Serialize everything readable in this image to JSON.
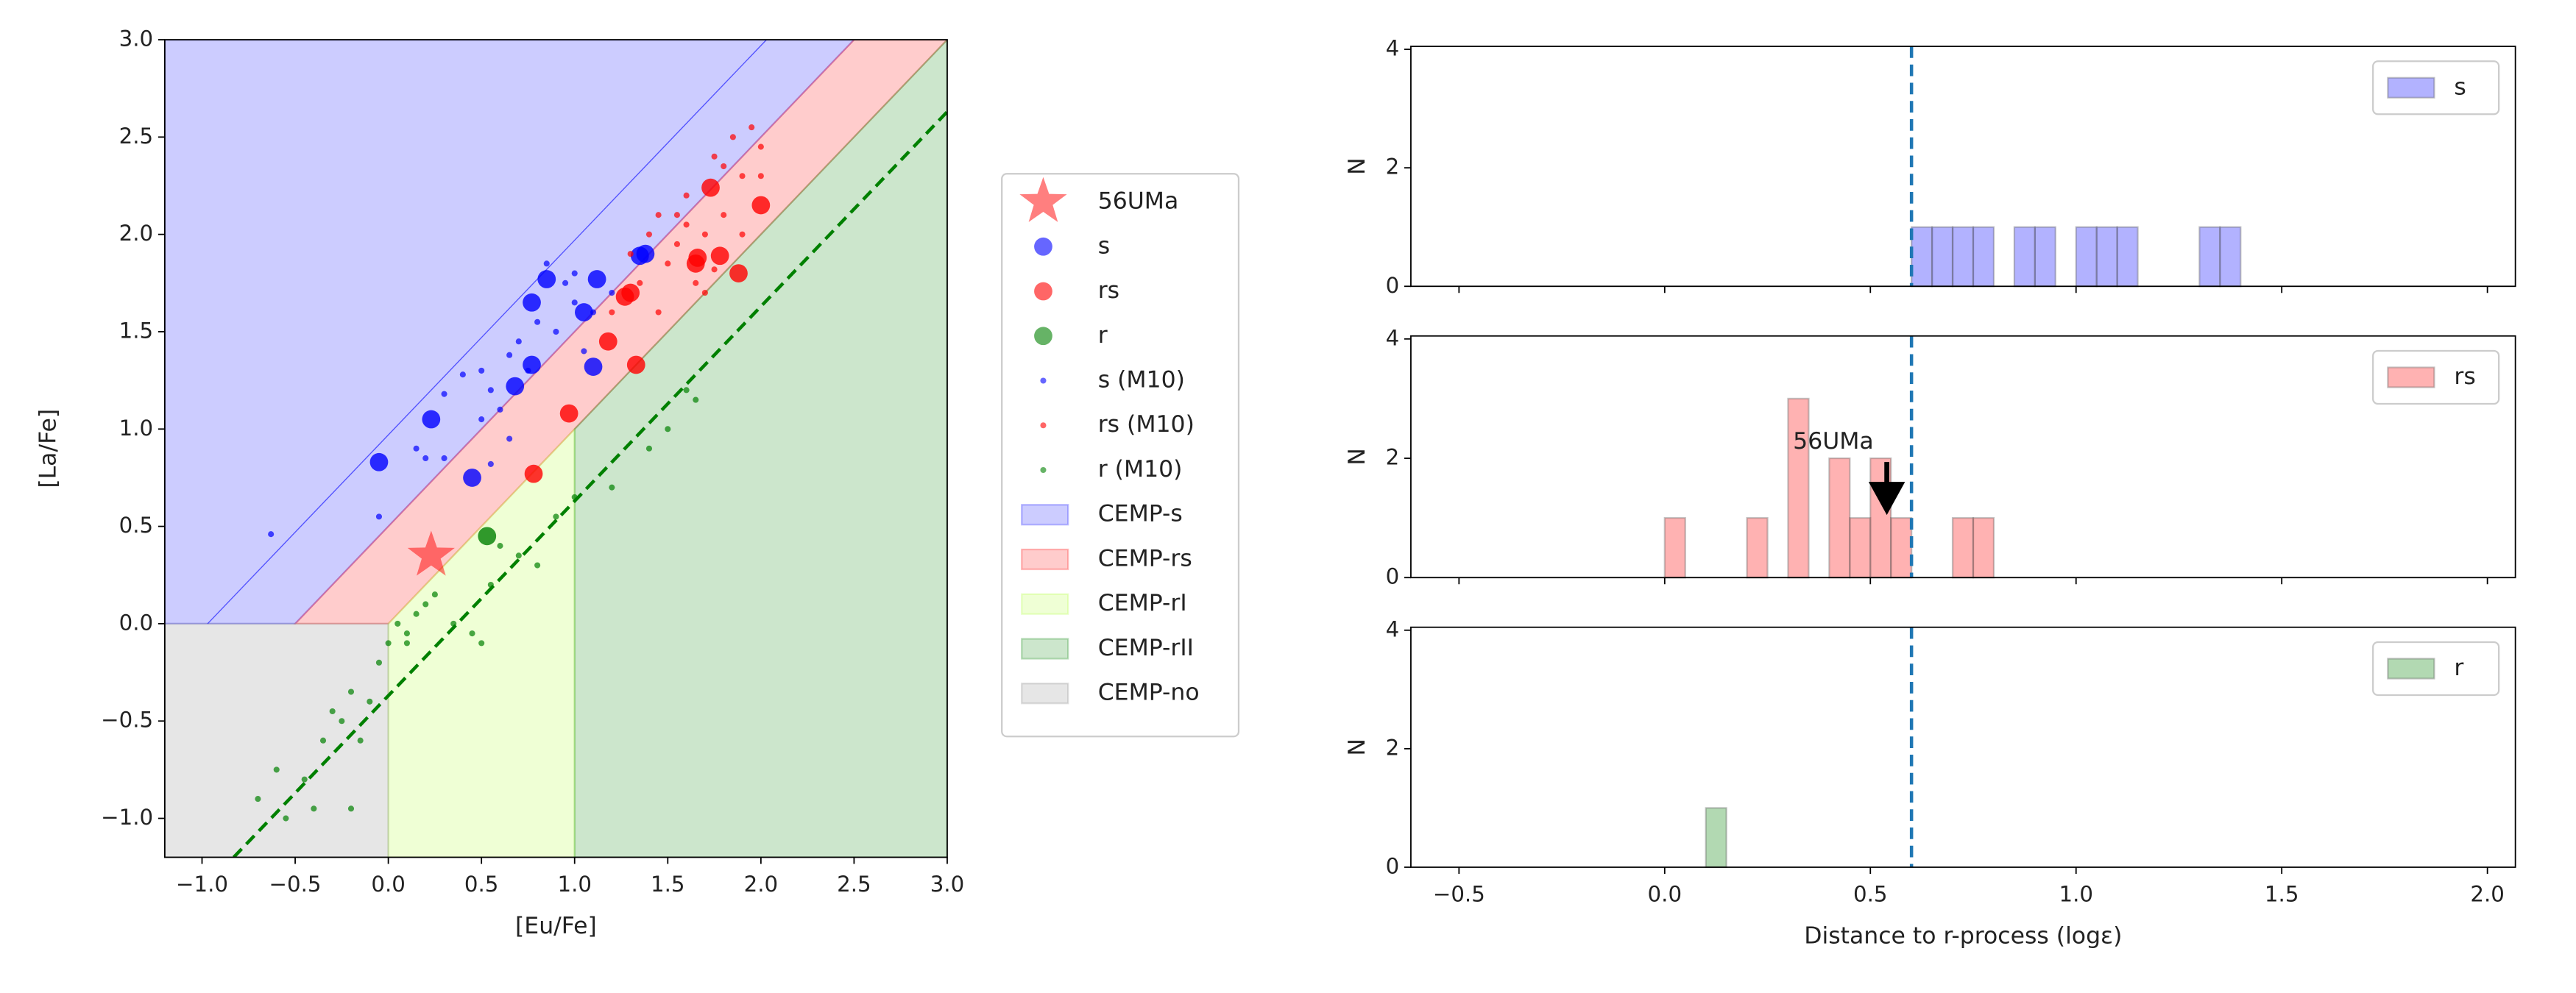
{
  "chart_data": [
    {
      "type": "scatter",
      "xlabel": "[Eu/Fe]",
      "ylabel": "[La/Fe]",
      "xlim": [
        -1.2,
        3
      ],
      "ylim": [
        -1.2,
        3
      ],
      "xticks": [
        {
          "value": -1,
          "label": "−1.0"
        },
        {
          "value": -0.5,
          "label": "−0.5"
        },
        {
          "value": 0,
          "label": "0.0"
        },
        0.5,
        {
          "value": 1,
          "label": "1.0"
        },
        1.5,
        {
          "value": 2,
          "label": "2.0"
        },
        2.5,
        {
          "value": 3,
          "label": "3.0"
        }
      ],
      "yticks": [
        {
          "value": -1,
          "label": "−1.0"
        },
        {
          "value": -0.5,
          "label": "−0.5"
        },
        {
          "value": 0,
          "label": "0.0"
        },
        0.5,
        {
          "value": 1,
          "label": "1.0"
        },
        1.5,
        {
          "value": 2,
          "label": "2.0"
        },
        2.5,
        {
          "value": 3,
          "label": "3.0"
        }
      ],
      "legend": "outside right",
      "regions": [
        {
          "name": "CEMP-s",
          "color": "#0000ff",
          "x": [
            -1.2,
            -0.5,
            2.5,
            -1.2
          ],
          "values": [
            0,
            0,
            3,
            3
          ]
        },
        {
          "name": "CEMP-rs",
          "color": "#ff0000",
          "x": [
            -0.5,
            0,
            3,
            2.5
          ],
          "values": [
            0,
            0,
            3,
            3
          ]
        },
        {
          "name": "CEMP-rI",
          "color": "#adff2f",
          "x": [
            0,
            1,
            1,
            0
          ],
          "values": [
            -1.2,
            -1.2,
            1,
            0
          ]
        },
        {
          "name": "CEMP-rII",
          "color": "#008000",
          "x": [
            1,
            3,
            3,
            1
          ],
          "values": [
            -1.2,
            -1.2,
            3,
            1
          ]
        },
        {
          "name": "CEMP-no",
          "color": "#808080",
          "x": [
            -1.2,
            0,
            0,
            -1.2
          ],
          "values": [
            -1.2,
            -1.2,
            0,
            0
          ]
        }
      ],
      "lines": [
        {
          "color": "#0000ff",
          "style": "solid",
          "x": [
            -0.97,
            2.03
          ],
          "values": [
            0,
            3
          ]
        },
        {
          "color": "#008000",
          "style": "dashed",
          "x": [
            -0.83,
            3
          ],
          "values": [
            -1.2,
            2.63
          ]
        }
      ],
      "series": [
        {
          "name": "56UMa",
          "color": "#ff0000",
          "marker": "star",
          "x": [
            0.23
          ],
          "values": [
            0.35
          ]
        },
        {
          "name": "s",
          "color": "#0000ff",
          "marker": "circle",
          "x": [
            -0.05,
            0.23,
            0.45,
            0.68,
            0.77,
            0.77,
            0.85,
            1.05,
            1.12,
            1.35,
            1.38,
            1.1
          ],
          "values": [
            0.83,
            1.05,
            0.75,
            1.22,
            1.33,
            1.65,
            1.77,
            1.6,
            1.77,
            1.89,
            1.9,
            1.32
          ]
        },
        {
          "name": "rs",
          "color": "#ff0000",
          "marker": "circle",
          "x": [
            0.78,
            0.97,
            1.18,
            1.3,
            1.33,
            1.65,
            1.73,
            1.78,
            1.88,
            2.0,
            1.66,
            1.27
          ],
          "values": [
            0.77,
            1.08,
            1.45,
            1.7,
            1.33,
            1.85,
            2.24,
            1.89,
            1.8,
            2.15,
            1.88,
            1.68
          ]
        },
        {
          "name": "r",
          "color": "#008000",
          "marker": "circle",
          "x": [
            0.53
          ],
          "values": [
            0.45
          ]
        },
        {
          "name": "s (M10)",
          "color": "#0000ff",
          "marker": "dot",
          "x": [
            -0.63,
            -0.05,
            0.15,
            0.2,
            0.3,
            0.3,
            0.4,
            0.5,
            0.55,
            0.5,
            0.6,
            0.65,
            0.7,
            0.75,
            0.8,
            0.85,
            0.9,
            0.95,
            1.0,
            1.05,
            1.1,
            1.2,
            1.0,
            0.55,
            0.65
          ],
          "values": [
            0.46,
            0.55,
            0.9,
            0.85,
            0.85,
            1.18,
            1.28,
            1.3,
            0.82,
            1.05,
            1.1,
            0.95,
            1.45,
            1.3,
            1.55,
            1.85,
            1.5,
            1.75,
            1.65,
            1.4,
            1.6,
            1.7,
            1.8,
            1.2,
            1.38
          ]
        },
        {
          "name": "rs (M10)",
          "color": "#ff0000",
          "marker": "dot",
          "x": [
            1.3,
            1.4,
            1.45,
            1.5,
            1.55,
            1.6,
            1.65,
            1.7,
            1.75,
            1.8,
            1.85,
            1.9,
            1.95,
            2.0,
            1.7,
            1.6,
            1.45,
            1.35,
            1.8,
            1.9,
            1.75,
            2.0,
            1.55,
            1.2
          ],
          "values": [
            1.9,
            2.0,
            2.1,
            1.85,
            1.95,
            2.2,
            1.75,
            2.0,
            2.4,
            2.35,
            2.5,
            2.3,
            2.55,
            2.45,
            1.7,
            2.05,
            1.6,
            1.75,
            2.1,
            2.0,
            1.82,
            2.3,
            2.1,
            1.6
          ]
        },
        {
          "name": "r (M10)",
          "color": "#008000",
          "marker": "dot",
          "x": [
            -0.7,
            -0.6,
            -0.55,
            -0.45,
            -0.4,
            -0.35,
            -0.3,
            -0.25,
            -0.2,
            -0.15,
            -0.1,
            -0.05,
            0.0,
            0.05,
            0.1,
            0.2,
            0.25,
            0.35,
            0.45,
            0.5,
            0.55,
            0.6,
            0.7,
            0.8,
            0.9,
            1.0,
            1.2,
            1.4,
            1.5,
            1.6,
            1.65,
            0.1,
            -0.2,
            0.15
          ],
          "values": [
            -0.9,
            -0.75,
            -1.0,
            -0.8,
            -0.95,
            -0.6,
            -0.45,
            -0.5,
            -0.35,
            -0.6,
            -0.4,
            -0.2,
            -0.1,
            0.0,
            -0.1,
            0.1,
            0.15,
            0.0,
            -0.05,
            -0.1,
            0.2,
            0.4,
            0.35,
            0.3,
            0.55,
            0.65,
            0.7,
            0.9,
            1.0,
            1.2,
            1.15,
            -0.05,
            -0.95,
            0.05
          ]
        }
      ]
    },
    {
      "type": "histogram",
      "ylabel": "N",
      "show_xticklabels": false,
      "xlim": [
        -0.617,
        2.068
      ],
      "ylim": [
        0,
        4.05
      ],
      "xticks": [
        {
          "value": -0.5,
          "label": "−0.5"
        },
        {
          "value": 0,
          "label": "0.0"
        },
        0.5,
        {
          "value": 1,
          "label": "1.0"
        },
        1.5,
        {
          "value": 2,
          "label": "2.0"
        }
      ],
      "yticks": [
        0,
        2,
        4
      ],
      "legend": "upper right",
      "vline": {
        "x": 0.6,
        "color": "#1f77b4",
        "style": "dashed"
      },
      "bins": [
        -0.5,
        -0.45,
        -0.4,
        -0.35,
        -0.3,
        -0.25,
        -0.2,
        -0.15,
        -0.1,
        -0.05,
        0,
        0.05,
        0.1,
        0.15,
        0.2,
        0.25,
        0.3,
        0.35,
        0.4,
        0.45,
        0.5,
        0.55,
        0.6,
        0.65,
        0.7,
        0.75,
        0.8,
        0.85,
        0.9,
        0.95,
        1,
        1.05,
        1.1,
        1.15,
        1.2,
        1.25,
        1.3,
        1.35,
        1.4,
        1.45,
        1.5,
        1.55,
        1.6,
        1.65,
        1.7,
        1.75,
        1.8,
        1.85,
        1.9,
        1.95
      ],
      "series": [
        {
          "name": "s",
          "color": "#0000ff",
          "values": [
            0,
            0,
            0,
            0,
            0,
            0,
            0,
            0,
            0,
            0,
            0,
            0,
            0,
            0,
            0,
            0,
            0,
            0,
            0,
            0,
            0,
            0,
            1,
            1,
            1,
            1,
            0,
            1,
            1,
            0,
            1,
            1,
            1,
            0,
            0,
            0,
            1,
            1,
            0,
            0,
            0,
            0,
            0,
            0,
            0,
            0,
            0,
            0,
            0
          ]
        }
      ]
    },
    {
      "type": "histogram",
      "ylabel": "N",
      "show_xticklabels": false,
      "xlim": [
        -0.617,
        2.068
      ],
      "ylim": [
        0,
        4.05
      ],
      "xticks": [
        {
          "value": -0.5,
          "label": "−0.5"
        },
        {
          "value": 0,
          "label": "0.0"
        },
        0.5,
        {
          "value": 1,
          "label": "1.0"
        },
        1.5,
        {
          "value": 2,
          "label": "2.0"
        }
      ],
      "yticks": [
        0,
        2,
        4
      ],
      "legend": "upper right",
      "vline": {
        "x": 0.6,
        "color": "#1f77b4",
        "style": "dashed"
      },
      "annotation": {
        "text": "56UMa",
        "xytext": [
          0.41,
          2.27
        ],
        "xy": [
          0.54,
          1.05
        ]
      },
      "bins": [
        -0.5,
        -0.45,
        -0.4,
        -0.35,
        -0.3,
        -0.25,
        -0.2,
        -0.15,
        -0.1,
        -0.05,
        0,
        0.05,
        0.1,
        0.15,
        0.2,
        0.25,
        0.3,
        0.35,
        0.4,
        0.45,
        0.5,
        0.55,
        0.6,
        0.65,
        0.7,
        0.75,
        0.8,
        0.85,
        0.9,
        0.95,
        1,
        1.05,
        1.1,
        1.15,
        1.2,
        1.25,
        1.3,
        1.35,
        1.4,
        1.45,
        1.5,
        1.55,
        1.6,
        1.65,
        1.7,
        1.75,
        1.8,
        1.85,
        1.9,
        1.95
      ],
      "series": [
        {
          "name": "rs",
          "color": "#ff0000",
          "values": [
            0,
            0,
            0,
            0,
            0,
            0,
            0,
            0,
            0,
            0,
            1,
            0,
            0,
            0,
            1,
            0,
            3,
            0,
            2,
            1,
            2,
            1,
            0,
            0,
            1,
            1,
            0,
            0,
            0,
            0,
            0,
            0,
            0,
            0,
            0,
            0,
            0,
            0,
            0,
            0,
            0,
            0,
            0,
            0,
            0,
            0,
            0,
            0,
            0
          ]
        }
      ]
    },
    {
      "type": "histogram",
      "ylabel": "N",
      "xlabel": "Distance to r-process (logε)",
      "show_xticklabels": true,
      "xlim": [
        -0.617,
        2.068
      ],
      "ylim": [
        0,
        4.05
      ],
      "xticks": [
        {
          "value": -0.5,
          "label": "−0.5"
        },
        {
          "value": 0,
          "label": "0.0"
        },
        0.5,
        {
          "value": 1,
          "label": "1.0"
        },
        1.5,
        {
          "value": 2,
          "label": "2.0"
        }
      ],
      "yticks": [
        0,
        2,
        4
      ],
      "legend": "upper right",
      "vline": {
        "x": 0.6,
        "color": "#1f77b4",
        "style": "dashed"
      },
      "bins": [
        -0.5,
        -0.45,
        -0.4,
        -0.35,
        -0.3,
        -0.25,
        -0.2,
        -0.15,
        -0.1,
        -0.05,
        0,
        0.05,
        0.1,
        0.15,
        0.2,
        0.25,
        0.3,
        0.35,
        0.4,
        0.45,
        0.5,
        0.55,
        0.6,
        0.65,
        0.7,
        0.75,
        0.8,
        0.85,
        0.9,
        0.95,
        1,
        1.05,
        1.1,
        1.15,
        1.2,
        1.25,
        1.3,
        1.35,
        1.4,
        1.45,
        1.5,
        1.55,
        1.6,
        1.65,
        1.7,
        1.75,
        1.8,
        1.85,
        1.9,
        1.95
      ],
      "series": [
        {
          "name": "r",
          "color": "#008000",
          "values": [
            0,
            0,
            0,
            0,
            0,
            0,
            0,
            0,
            0,
            0,
            0,
            0,
            1,
            0,
            0,
            0,
            0,
            0,
            0,
            0,
            0,
            0,
            0,
            0,
            0,
            0,
            0,
            0,
            0,
            0,
            0,
            0,
            0,
            0,
            0,
            0,
            0,
            0,
            0,
            0,
            0,
            0,
            0,
            0,
            0,
            0,
            0,
            0,
            0
          ]
        }
      ]
    }
  ]
}
